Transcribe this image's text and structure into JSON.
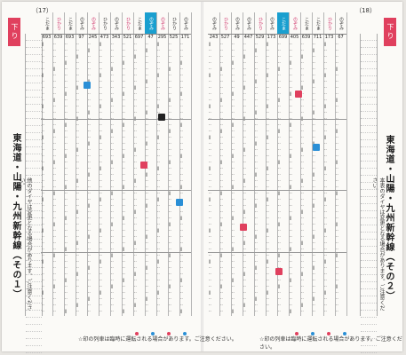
{
  "page": {
    "left_page_number": "（17）",
    "right_page_number": "（18）",
    "direction_tab": "下り",
    "left_title": "東海道・山陽・九州新幹線（その１）",
    "right_title": "東海道・山陽・九州新幹線（その２）",
    "left_side_note": "他のダイヤは変更となる場合があります。ご注意ください。",
    "right_side_note": "本表のダイヤは変更となる場合があります。ご注意ください。",
    "left_footer": "☆印の列車は臨時に運転される場合があります。ご注意ください。",
    "right_footer": "☆印の列車は臨時に運転される場合があります。ご注意ください。"
  },
  "left_columns": [
    {
      "name": "こだま",
      "no": "693"
    },
    {
      "name": "ひかり",
      "no": "639"
    },
    {
      "name": "こだま",
      "no": "693"
    },
    {
      "name": "のぞみ",
      "no": "97"
    },
    {
      "name": "のぞみ",
      "no": "245"
    },
    {
      "name": "ひかり",
      "no": "473"
    },
    {
      "name": "のぞみ",
      "no": "343"
    },
    {
      "name": "ひかり",
      "no": "521"
    },
    {
      "name": "こだま",
      "no": "697"
    },
    {
      "name": "のぞみ",
      "no": "47"
    },
    {
      "name": "のぞみ",
      "no": "295"
    },
    {
      "name": "ひかり",
      "no": "525"
    },
    {
      "name": "のぞみ",
      "no": "171"
    }
  ],
  "right_columns": [
    {
      "name": "のぞみ",
      "no": "243"
    },
    {
      "name": "ひかり",
      "no": "527"
    },
    {
      "name": "のぞみ",
      "no": "49"
    },
    {
      "name": "のぞみ",
      "no": "447"
    },
    {
      "name": "ひかり",
      "no": "529"
    },
    {
      "name": "のぞみ",
      "no": "173"
    },
    {
      "name": "こだま",
      "no": "699"
    },
    {
      "name": "のぞみ",
      "no": "405"
    },
    {
      "name": "こだま",
      "no": "639"
    },
    {
      "name": "こだま",
      "no": "711"
    },
    {
      "name": "ひかり",
      "no": "173"
    },
    {
      "name": "のぞみ",
      "no": "67"
    }
  ]
}
